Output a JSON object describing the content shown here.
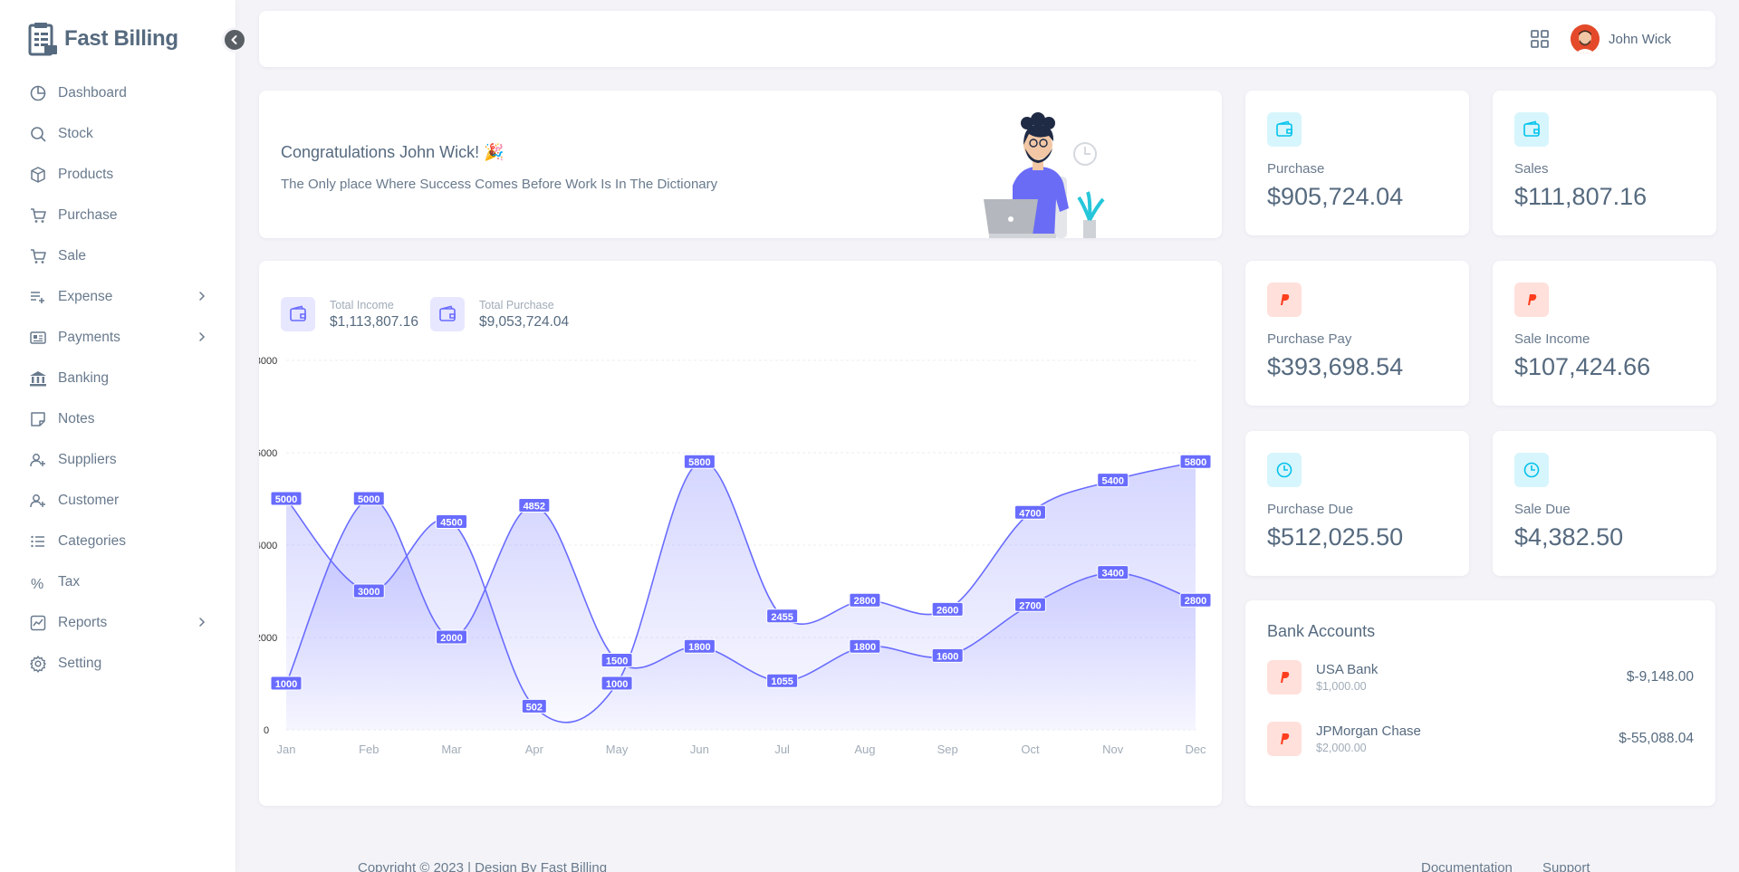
{
  "brand": {
    "name": "Fast Billing"
  },
  "sidebar": {
    "items": [
      {
        "label": "Dashboard",
        "icon": "pie-chart-icon",
        "has_submenu": false
      },
      {
        "label": "Stock",
        "icon": "search-icon",
        "has_submenu": false
      },
      {
        "label": "Products",
        "icon": "box-icon",
        "has_submenu": false
      },
      {
        "label": "Purchase",
        "icon": "cart-icon",
        "has_submenu": false
      },
      {
        "label": "Sale",
        "icon": "cart-icon",
        "has_submenu": false
      },
      {
        "label": "Expense",
        "icon": "list-plus-icon",
        "has_submenu": true
      },
      {
        "label": "Payments",
        "icon": "id-card-icon",
        "has_submenu": true
      },
      {
        "label": "Banking",
        "icon": "bank-icon",
        "has_submenu": false
      },
      {
        "label": "Notes",
        "icon": "note-icon",
        "has_submenu": false
      },
      {
        "label": "Suppliers",
        "icon": "user-plus-icon",
        "has_submenu": false
      },
      {
        "label": "Customer",
        "icon": "user-plus-icon",
        "has_submenu": false
      },
      {
        "label": "Categories",
        "icon": "list-icon",
        "has_submenu": false
      },
      {
        "label": "Tax",
        "icon": "percent-icon",
        "has_submenu": false
      },
      {
        "label": "Reports",
        "icon": "chart-icon",
        "has_submenu": true
      },
      {
        "label": "Setting",
        "icon": "gear-icon",
        "has_submenu": false
      }
    ]
  },
  "topbar": {
    "user_name": "John Wick"
  },
  "welcome": {
    "title": "Congratulations John Wick! 🎉",
    "subtitle": "The Only place Where Success Comes Before Work Is In The Dictionary"
  },
  "income_summary": {
    "total_income_label": "Total Income",
    "total_income_value": "$1,113,807.16",
    "total_purchase_label": "Total Purchase",
    "total_purchase_value": "$9,053,724.04"
  },
  "chart_data": {
    "type": "area",
    "categories": [
      "Jan",
      "Feb",
      "Mar",
      "Apr",
      "May",
      "Jun",
      "Jul",
      "Aug",
      "Sep",
      "Oct",
      "Nov",
      "Dec"
    ],
    "series": [
      {
        "values": [
          5000,
          3000,
          4500,
          502,
          1000,
          5800,
          2455,
          2800,
          2600,
          4700,
          5400,
          5800
        ]
      },
      {
        "values": [
          1000,
          5000,
          2000,
          4852,
          1500,
          1800,
          1055,
          1800,
          1600,
          2700,
          3400,
          2800
        ]
      }
    ],
    "ylim": [
      0,
      8000
    ],
    "yticks": [
      0,
      2000,
      4000,
      6000,
      8000
    ],
    "data_labels": true,
    "line_color": "#696cff"
  },
  "stats": [
    {
      "label": "Purchase",
      "value": "$905,724.04",
      "icon": "wallet-icon",
      "color": "#03c3ec"
    },
    {
      "label": "Sales",
      "value": "$111,807.16",
      "icon": "wallet-icon",
      "color": "#03c3ec"
    },
    {
      "label": "Purchase Pay",
      "value": "$393,698.54",
      "icon": "paypal-icon",
      "color": "#ff3e1d"
    },
    {
      "label": "Sale Income",
      "value": "$107,424.66",
      "icon": "paypal-icon",
      "color": "#ff3e1d"
    },
    {
      "label": "Purchase Due",
      "value": "$512,025.50",
      "icon": "clock-icon",
      "color": "#03c3ec"
    },
    {
      "label": "Sale Due",
      "value": "$4,382.50",
      "icon": "clock-icon",
      "color": "#03c3ec"
    }
  ],
  "bank_accounts": {
    "title": "Bank Accounts",
    "items": [
      {
        "name": "USA Bank",
        "sub": "$1,000.00",
        "amount": "$-9,148.00"
      },
      {
        "name": "JPMorgan Chase",
        "sub": "$2,000.00",
        "amount": "$-55,088.04"
      }
    ]
  },
  "footer": {
    "copyright": "Copyright © 2023 | Design By Fast Billing",
    "links": [
      "Documentation",
      "Support"
    ]
  }
}
